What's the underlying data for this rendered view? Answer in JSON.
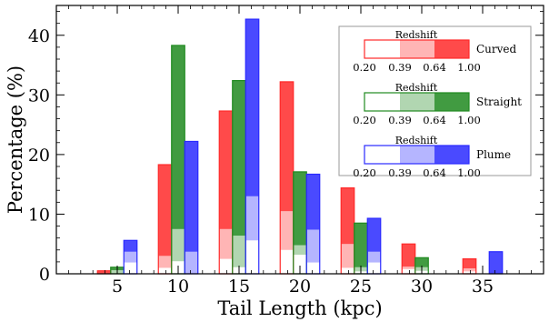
{
  "chart_data": {
    "type": "bar",
    "stacked_segments": "redshift-bins",
    "x": [
      5,
      10,
      15,
      20,
      25,
      30,
      35
    ],
    "xlabel": "Tail Length (kpc)",
    "ylabel": "Percentage (%)",
    "xlim": [
      0,
      40
    ],
    "ylim": [
      0,
      45
    ],
    "xticks": [
      5,
      10,
      15,
      20,
      25,
      30,
      35
    ],
    "yticks": [
      0,
      10,
      20,
      30,
      40
    ],
    "redshift_bins": [
      "0.20",
      "0.39",
      "0.64",
      "1.00"
    ],
    "legend_title": "Redshift",
    "legend_position": "upper right",
    "series": [
      {
        "name": "Curved",
        "color": "#ff2a2a",
        "total": [
          0.5,
          18.3,
          27.3,
          32.2,
          14.4,
          5.0,
          2.5
        ],
        "bin_boundaries": [
          [
            0,
            0,
            0.5
          ],
          [
            1.0,
            3.0,
            18.3
          ],
          [
            2.5,
            7.5,
            27.3
          ],
          [
            4.0,
            10.5,
            32.2
          ],
          [
            1.0,
            5.0,
            14.4
          ],
          [
            0.8,
            1.2,
            5.0
          ],
          [
            0.4,
            0.9,
            2.5
          ]
        ]
      },
      {
        "name": "Straight",
        "color": "#208a20",
        "total": [
          1.1,
          38.3,
          32.4,
          17.1,
          8.5,
          2.7,
          0
        ],
        "bin_boundaries": [
          [
            0,
            0.6,
            1.1
          ],
          [
            2.1,
            7.5,
            38.3
          ],
          [
            1.1,
            6.4,
            32.4
          ],
          [
            3.2,
            4.8,
            17.1
          ],
          [
            0.4,
            1.1,
            8.5
          ],
          [
            0.5,
            1.1,
            2.7
          ],
          [
            0,
            0,
            0
          ]
        ]
      },
      {
        "name": "Plume",
        "color": "#2a2aff",
        "total": [
          5.6,
          22.2,
          42.7,
          16.7,
          9.3,
          0,
          3.7
        ],
        "bin_boundaries": [
          [
            1.9,
            3.7,
            5.6
          ],
          [
            0,
            3.7,
            22.2
          ],
          [
            5.6,
            13.0,
            42.7
          ],
          [
            1.9,
            7.4,
            16.7
          ],
          [
            1.9,
            3.7,
            9.3
          ],
          [
            0,
            0,
            0
          ],
          [
            0,
            0,
            3.7
          ]
        ]
      }
    ]
  }
}
